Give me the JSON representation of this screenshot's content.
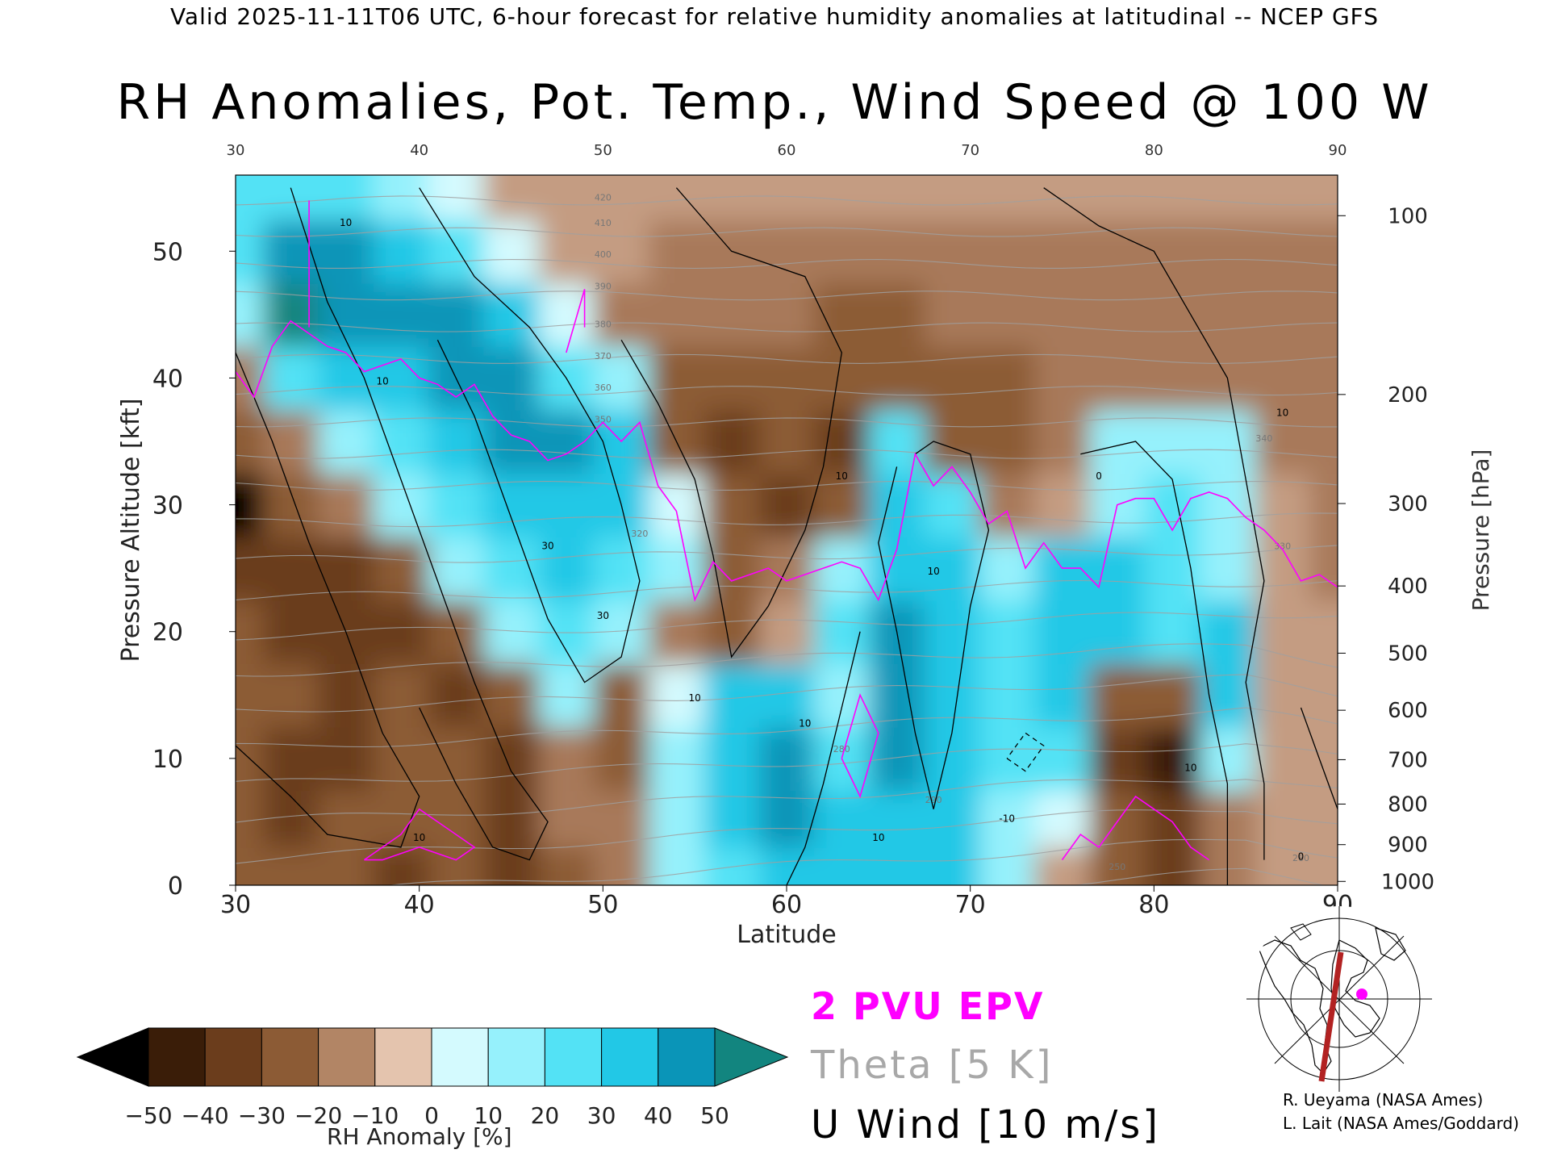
{
  "header": {
    "line": "Valid 2025-11-11T06 UTC, 6-hour forecast for relative humidity anomalies at latitudinal -- NCEP GFS",
    "title": "RH Anomalies, Pot. Temp., Wind Speed @ 100 W"
  },
  "chart_data": {
    "type": "heatmap",
    "title": "RH Anomalies, Pot. Temp., Wind Speed @ 100 W",
    "xlabel": "Latitude",
    "ylabel": "Pressure Altitude [kft]",
    "ylabel_right": "Pressure [hPa]",
    "xlim": [
      30,
      90
    ],
    "ylim": [
      0,
      56
    ],
    "x_ticks": [
      "30",
      "40",
      "50",
      "60",
      "70",
      "80",
      "90"
    ],
    "y_ticks": [
      "0",
      "10",
      "20",
      "30",
      "40",
      "50"
    ],
    "pressure_ticks": [
      {
        "label": "100",
        "kft": 52.8
      },
      {
        "label": "200",
        "kft": 38.7
      },
      {
        "label": "300",
        "kft": 30.1
      },
      {
        "label": "400",
        "kft": 23.6
      },
      {
        "label": "500",
        "kft": 18.3
      },
      {
        "label": "600",
        "kft": 13.8
      },
      {
        "label": "700",
        "kft": 9.9
      },
      {
        "label": "800",
        "kft": 6.4
      },
      {
        "label": "900",
        "kft": 3.2
      },
      {
        "label": "1000",
        "kft": 0.3
      }
    ],
    "grid": false,
    "rh_anomaly_field": {
      "x": [
        30,
        33,
        36,
        39,
        42,
        45,
        48,
        51,
        54,
        57,
        60,
        63,
        66,
        69,
        72,
        75,
        78,
        81,
        84,
        87,
        90
      ],
      "y": [
        1,
        5,
        10,
        15,
        20,
        25,
        30,
        35,
        40,
        45,
        50,
        55
      ],
      "values": [
        [
          -30,
          -30,
          -30,
          -35,
          -30,
          -35,
          -25,
          -20,
          10,
          20,
          30,
          35,
          35,
          30,
          10,
          -10,
          -30,
          -35,
          -20,
          -10,
          -5
        ],
        [
          -30,
          -35,
          -30,
          -30,
          -30,
          -35,
          -20,
          -20,
          15,
          35,
          40,
          30,
          35,
          35,
          10,
          0,
          -30,
          -40,
          -20,
          -10,
          -5
        ],
        [
          -30,
          -35,
          -35,
          -30,
          -30,
          -35,
          -20,
          -30,
          15,
          35,
          40,
          20,
          40,
          35,
          20,
          25,
          -35,
          -45,
          10,
          -10,
          -5
        ],
        [
          -30,
          -30,
          -35,
          -30,
          -35,
          -25,
          10,
          -30,
          5,
          30,
          30,
          10,
          45,
          30,
          25,
          30,
          -25,
          -30,
          30,
          -10,
          -10
        ],
        [
          -30,
          -40,
          -35,
          -35,
          -25,
          10,
          20,
          10,
          -15,
          -25,
          -10,
          20,
          45,
          35,
          20,
          35,
          30,
          20,
          35,
          -10,
          -10
        ],
        [
          -40,
          -40,
          -35,
          -25,
          15,
          25,
          30,
          20,
          10,
          -30,
          -20,
          15,
          35,
          30,
          15,
          30,
          30,
          25,
          15,
          -5,
          -15
        ],
        [
          -50,
          -25,
          -20,
          10,
          25,
          35,
          30,
          35,
          5,
          -30,
          -35,
          -30,
          30,
          25,
          -15,
          -10,
          15,
          20,
          10,
          -10,
          -20
        ],
        [
          -30,
          -15,
          10,
          25,
          35,
          40,
          40,
          30,
          -25,
          -35,
          -30,
          -40,
          25,
          -30,
          -30,
          -20,
          10,
          15,
          10,
          -15,
          -20
        ],
        [
          -20,
          20,
          30,
          35,
          40,
          45,
          25,
          10,
          -30,
          -30,
          -30,
          -30,
          -30,
          -25,
          -25,
          -20,
          -15,
          -15,
          -15,
          -15,
          -15
        ],
        [
          10,
          50,
          45,
          45,
          40,
          30,
          5,
          -15,
          -15,
          -20,
          -20,
          -25,
          -25,
          -20,
          -20,
          -20,
          -20,
          -20,
          -20,
          -20,
          -15
        ],
        [
          20,
          40,
          40,
          30,
          20,
          5,
          -10,
          -10,
          -15,
          -15,
          -15,
          -15,
          -15,
          -15,
          -15,
          -15,
          -15,
          -15,
          -15,
          -15,
          -15
        ],
        [
          20,
          25,
          20,
          15,
          5,
          -5,
          -5,
          -5,
          -5,
          -5,
          -5,
          -5,
          -5,
          -5,
          -5,
          -5,
          -5,
          -5,
          -5,
          -5,
          -5
        ]
      ]
    },
    "theta_contour_labels": [
      "250",
      "260",
      "280",
      "290",
      "320",
      "330",
      "340",
      "350",
      "360",
      "370",
      "380",
      "390",
      "400",
      "410",
      "420"
    ],
    "wind_contour_labels": [
      "0",
      "10",
      "30",
      "-10"
    ],
    "epv_2pvu_line": {
      "x": [
        30,
        31,
        32,
        33,
        34,
        35,
        36,
        37,
        38,
        39,
        40,
        41,
        42,
        43,
        44,
        45,
        46,
        47,
        48,
        49,
        50,
        51,
        52,
        53,
        54,
        55,
        56,
        57,
        58,
        59,
        60,
        61,
        62,
        63,
        64,
        65,
        66,
        67,
        68,
        69,
        70,
        71,
        72,
        73,
        74,
        75,
        76,
        77,
        78,
        79,
        80,
        81,
        82,
        83,
        84,
        85,
        86,
        87,
        88,
        89,
        90
      ],
      "y": [
        40.5,
        38.5,
        42.5,
        44.5,
        43.5,
        42.5,
        42.0,
        40.5,
        41.0,
        41.5,
        40.0,
        39.5,
        38.5,
        39.5,
        37.0,
        35.5,
        35.0,
        33.5,
        34.0,
        35.0,
        36.5,
        35.0,
        36.5,
        31.5,
        29.5,
        22.5,
        25.5,
        24.0,
        24.5,
        25.0,
        24.0,
        24.5,
        25.0,
        25.5,
        25.0,
        22.5,
        26.5,
        34.0,
        31.5,
        33.0,
        31.0,
        28.5,
        29.5,
        25.0,
        27.0,
        25.0,
        25.0,
        23.5,
        30.0,
        30.5,
        30.5,
        28.0,
        30.5,
        31.0,
        30.5,
        29.0,
        28.0,
        26.5,
        24.0,
        24.5,
        23.5
      ]
    }
  },
  "colorbar": {
    "title": "RH Anomaly [%]",
    "ticks": [
      "−50",
      "−40",
      "−30",
      "−20",
      "−10",
      "0",
      "10",
      "20",
      "30",
      "40",
      "50"
    ],
    "colors": [
      "#000000",
      "#3a1d08",
      "#6b3d1c",
      "#8c5b35",
      "#a8795a",
      "#c49c82",
      "#f0dccd",
      "#d4fafe",
      "#96f1fc",
      "#53e2f5",
      "#22c8e6",
      "#0a95b8",
      "#12857f"
    ]
  },
  "legend": {
    "epv": "2 PVU EPV",
    "theta": "Theta [5 K]",
    "wind": "U Wind [10 m/s]"
  },
  "credits": {
    "line1": "R. Ueyama (NASA Ames)",
    "line2": "L. Lait (NASA Ames/Goddard)"
  },
  "colors": {
    "epv": "#ff00ff",
    "theta": "#a0a0a0",
    "wind": "#000000",
    "section_line": "#b22222",
    "marker": "#ff00ff"
  },
  "inset_map": {
    "icon": "polar-map-icon"
  }
}
